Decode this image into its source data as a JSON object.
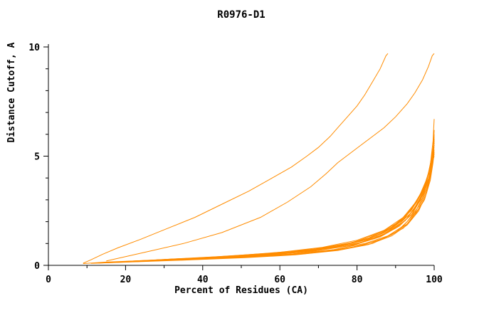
{
  "page": {
    "background": "#ffffff"
  },
  "chart_data": {
    "type": "line",
    "title": "R0976-D1",
    "xlabel": "Percent of Residues (CA)",
    "ylabel": "Distance Cutoff, A",
    "xlim": [
      0,
      100
    ],
    "ylim": [
      0,
      10
    ],
    "x_major_ticks": [
      0,
      20,
      40,
      60,
      80,
      100
    ],
    "x_minor_step": 10,
    "y_major_ticks": [
      0,
      5,
      10
    ],
    "y_minor_step": 1,
    "grid": false,
    "legend_position": "none",
    "line_color": "#ff8c00",
    "axis_color": "#000000",
    "series": [
      {
        "name": "line-1",
        "points": [
          [
            9,
            0.1
          ],
          [
            11,
            0.25
          ],
          [
            14,
            0.5
          ],
          [
            18,
            0.8
          ],
          [
            24,
            1.2
          ],
          [
            31,
            1.7
          ],
          [
            38,
            2.2
          ],
          [
            45,
            2.8
          ],
          [
            52,
            3.4
          ],
          [
            58,
            4.0
          ],
          [
            63,
            4.5
          ],
          [
            67,
            5.0
          ],
          [
            70,
            5.4
          ],
          [
            73,
            5.9
          ],
          [
            75,
            6.3
          ],
          [
            78,
            6.9
          ],
          [
            80,
            7.3
          ],
          [
            82,
            7.8
          ],
          [
            84,
            8.4
          ],
          [
            86,
            9.0
          ],
          [
            87.5,
            9.6
          ],
          [
            88,
            9.7
          ]
        ]
      },
      {
        "name": "line-2",
        "points": [
          [
            15,
            0.2
          ],
          [
            25,
            0.6
          ],
          [
            35,
            1.0
          ],
          [
            45,
            1.5
          ],
          [
            55,
            2.2
          ],
          [
            62,
            2.9
          ],
          [
            68,
            3.6
          ],
          [
            72,
            4.2
          ],
          [
            75,
            4.7
          ],
          [
            78,
            5.1
          ],
          [
            81,
            5.5
          ],
          [
            84,
            5.9
          ],
          [
            87,
            6.3
          ],
          [
            90,
            6.8
          ],
          [
            93,
            7.4
          ],
          [
            95,
            7.9
          ],
          [
            97,
            8.5
          ],
          [
            98.5,
            9.1
          ],
          [
            99.5,
            9.6
          ],
          [
            100,
            9.7
          ]
        ]
      },
      {
        "name": "line-3",
        "points": [
          [
            19,
            0.16
          ],
          [
            31,
            0.26
          ],
          [
            46,
            0.38
          ],
          [
            59,
            0.53
          ],
          [
            71,
            0.74
          ],
          [
            81,
            1.05
          ],
          [
            88,
            1.5
          ],
          [
            92.5,
            2.05
          ],
          [
            95.5,
            2.75
          ],
          [
            97.8,
            3.6
          ],
          [
            99,
            4.6
          ],
          [
            99.7,
            5.7
          ],
          [
            100,
            6.7
          ]
        ]
      },
      {
        "name": "line-4",
        "points": [
          [
            9,
            0.08
          ],
          [
            15,
            0.15
          ],
          [
            25,
            0.22
          ],
          [
            40,
            0.3
          ],
          [
            55,
            0.42
          ],
          [
            68,
            0.58
          ],
          [
            78,
            0.8
          ],
          [
            85,
            1.1
          ],
          [
            90,
            1.5
          ],
          [
            93,
            2.0
          ],
          [
            96,
            2.7
          ],
          [
            98,
            3.5
          ],
          [
            99,
            4.2
          ],
          [
            99.7,
            4.9
          ],
          [
            100,
            5.3
          ]
        ]
      },
      {
        "name": "line-5",
        "points": [
          [
            12,
            0.1
          ],
          [
            22,
            0.18
          ],
          [
            35,
            0.27
          ],
          [
            50,
            0.38
          ],
          [
            63,
            0.52
          ],
          [
            74,
            0.72
          ],
          [
            82,
            1.0
          ],
          [
            88,
            1.35
          ],
          [
            92,
            1.8
          ],
          [
            95,
            2.4
          ],
          [
            97,
            3.1
          ],
          [
            98.5,
            3.9
          ],
          [
            99.5,
            4.7
          ],
          [
            100,
            5.0
          ]
        ]
      },
      {
        "name": "line-6",
        "points": [
          [
            15,
            0.12
          ],
          [
            28,
            0.22
          ],
          [
            42,
            0.33
          ],
          [
            56,
            0.46
          ],
          [
            68,
            0.64
          ],
          [
            78,
            0.9
          ],
          [
            85,
            1.25
          ],
          [
            90,
            1.7
          ],
          [
            94,
            2.3
          ],
          [
            96.5,
            3.0
          ],
          [
            98,
            3.8
          ],
          [
            99,
            4.6
          ],
          [
            99.8,
            5.5
          ],
          [
            100,
            5.9
          ]
        ]
      },
      {
        "name": "line-7",
        "points": [
          [
            18,
            0.15
          ],
          [
            30,
            0.25
          ],
          [
            45,
            0.36
          ],
          [
            58,
            0.5
          ],
          [
            70,
            0.7
          ],
          [
            80,
            1.0
          ],
          [
            87,
            1.4
          ],
          [
            91,
            1.9
          ],
          [
            94.5,
            2.5
          ],
          [
            97,
            3.3
          ],
          [
            98.5,
            4.2
          ],
          [
            99.5,
            5.1
          ],
          [
            100,
            5.6
          ]
        ]
      },
      {
        "name": "line-8",
        "points": [
          [
            20,
            0.18
          ],
          [
            33,
            0.28
          ],
          [
            47,
            0.4
          ],
          [
            60,
            0.55
          ],
          [
            72,
            0.78
          ],
          [
            81,
            1.1
          ],
          [
            88,
            1.55
          ],
          [
            92,
            2.1
          ],
          [
            95,
            2.8
          ],
          [
            97.5,
            3.6
          ],
          [
            99,
            4.5
          ],
          [
            99.8,
            5.3
          ],
          [
            100,
            5.7
          ]
        ]
      },
      {
        "name": "line-9",
        "points": [
          [
            16,
            0.13
          ],
          [
            27,
            0.2
          ],
          [
            40,
            0.28
          ],
          [
            53,
            0.38
          ],
          [
            66,
            0.52
          ],
          [
            76,
            0.72
          ],
          [
            84,
            1.0
          ],
          [
            89,
            1.4
          ],
          [
            93,
            1.9
          ],
          [
            96,
            2.6
          ],
          [
            98,
            3.4
          ],
          [
            99.2,
            4.3
          ],
          [
            100,
            5.1
          ]
        ]
      },
      {
        "name": "line-10",
        "points": [
          [
            22,
            0.2
          ],
          [
            34,
            0.3
          ],
          [
            48,
            0.42
          ],
          [
            61,
            0.58
          ],
          [
            73,
            0.82
          ],
          [
            82,
            1.15
          ],
          [
            88,
            1.6
          ],
          [
            92.5,
            2.2
          ],
          [
            95.5,
            2.9
          ],
          [
            98,
            3.8
          ],
          [
            99.3,
            4.8
          ],
          [
            100,
            5.5
          ]
        ]
      },
      {
        "name": "line-11",
        "points": [
          [
            25,
            0.22
          ],
          [
            38,
            0.33
          ],
          [
            52,
            0.46
          ],
          [
            64,
            0.62
          ],
          [
            75,
            0.88
          ],
          [
            83,
            1.25
          ],
          [
            89,
            1.75
          ],
          [
            93,
            2.35
          ],
          [
            96,
            3.1
          ],
          [
            98.2,
            4.0
          ],
          [
            99.5,
            5.0
          ],
          [
            100,
            5.4
          ]
        ]
      },
      {
        "name": "line-12",
        "points": [
          [
            13,
            0.1
          ],
          [
            24,
            0.17
          ],
          [
            37,
            0.25
          ],
          [
            51,
            0.35
          ],
          [
            64,
            0.48
          ],
          [
            75,
            0.68
          ],
          [
            83,
            0.95
          ],
          [
            89,
            1.35
          ],
          [
            93,
            1.85
          ],
          [
            96,
            2.5
          ],
          [
            98,
            3.3
          ],
          [
            99.2,
            4.2
          ],
          [
            99.8,
            5.0
          ],
          [
            100,
            5.8
          ]
        ]
      },
      {
        "name": "line-13",
        "points": [
          [
            28,
            0.25
          ],
          [
            40,
            0.35
          ],
          [
            54,
            0.48
          ],
          [
            66,
            0.66
          ],
          [
            77,
            0.95
          ],
          [
            85,
            1.35
          ],
          [
            90,
            1.85
          ],
          [
            94,
            2.5
          ],
          [
            96.8,
            3.3
          ],
          [
            98.6,
            4.2
          ],
          [
            99.6,
            5.2
          ],
          [
            100,
            5.6
          ]
        ]
      },
      {
        "name": "line-14",
        "points": [
          [
            30,
            0.27
          ],
          [
            44,
            0.4
          ],
          [
            57,
            0.55
          ],
          [
            69,
            0.75
          ],
          [
            79,
            1.05
          ],
          [
            86,
            1.5
          ],
          [
            91,
            2.0
          ],
          [
            94.5,
            2.7
          ],
          [
            97.2,
            3.5
          ],
          [
            99,
            4.5
          ],
          [
            99.8,
            5.4
          ],
          [
            100,
            5.8
          ]
        ]
      },
      {
        "name": "line-15",
        "points": [
          [
            11,
            0.09
          ],
          [
            21,
            0.16
          ],
          [
            33,
            0.24
          ],
          [
            47,
            0.34
          ],
          [
            60,
            0.46
          ],
          [
            72,
            0.64
          ],
          [
            81,
            0.9
          ],
          [
            87,
            1.25
          ],
          [
            92,
            1.7
          ],
          [
            95,
            2.3
          ],
          [
            97.5,
            3.0
          ],
          [
            99,
            3.9
          ],
          [
            99.7,
            4.7
          ],
          [
            100,
            5.2
          ]
        ]
      },
      {
        "name": "line-16",
        "points": [
          [
            35,
            0.3
          ],
          [
            48,
            0.44
          ],
          [
            60,
            0.6
          ],
          [
            71,
            0.82
          ],
          [
            80,
            1.15
          ],
          [
            87,
            1.6
          ],
          [
            92,
            2.2
          ],
          [
            95.5,
            2.95
          ],
          [
            98,
            3.8
          ],
          [
            99.4,
            4.9
          ],
          [
            100,
            5.5
          ]
        ]
      },
      {
        "name": "line-17",
        "points": [
          [
            17,
            0.14
          ],
          [
            29,
            0.23
          ],
          [
            43,
            0.34
          ],
          [
            57,
            0.47
          ],
          [
            69,
            0.66
          ],
          [
            79,
            0.92
          ],
          [
            86,
            1.3
          ],
          [
            91,
            1.8
          ],
          [
            94.5,
            2.4
          ],
          [
            97,
            3.2
          ],
          [
            98.8,
            4.1
          ],
          [
            99.7,
            5.0
          ],
          [
            100,
            6.2
          ]
        ]
      },
      {
        "name": "line-18",
        "points": [
          [
            23,
            0.2
          ],
          [
            36,
            0.3
          ],
          [
            50,
            0.44
          ],
          [
            63,
            0.6
          ],
          [
            74,
            0.85
          ],
          [
            83,
            1.2
          ],
          [
            89,
            1.7
          ],
          [
            93.5,
            2.3
          ],
          [
            96.5,
            3.05
          ],
          [
            98.5,
            3.95
          ],
          [
            99.6,
            4.95
          ],
          [
            100,
            6.0
          ]
        ]
      }
    ]
  }
}
